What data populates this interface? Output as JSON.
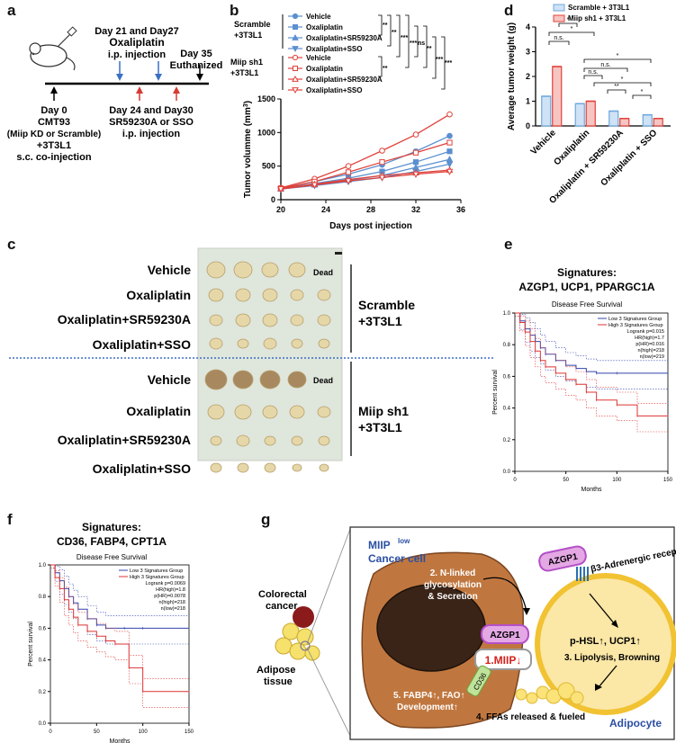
{
  "panel_labels": [
    "a",
    "b",
    "c",
    "d",
    "e",
    "f",
    "g"
  ],
  "panel_a": {
    "top_events": [
      "Day 21 and Day27",
      "Oxaliplatin",
      "i.p. injection"
    ],
    "day35": [
      "Day 35",
      "Euthanized"
    ],
    "day0": [
      "Day 0",
      "CMT93",
      "(Miip KD or Scramble)",
      "+3T3L1",
      "s.c. co-injection"
    ],
    "day24": [
      "Day 24 and Day30",
      "SR59230A or SSO",
      "i.p. injection"
    ]
  },
  "panel_b": {
    "group_scramble": [
      "Scramble",
      "+3T3L1"
    ],
    "group_miip": [
      "Miip sh1",
      "+3T3L1"
    ],
    "legend": [
      "Vehicle",
      "Oxaliplatin",
      "Oxaliplatin+SR59230A",
      "Oxaliplatin+SSO"
    ],
    "sig_stars": [
      "**",
      "**",
      "***",
      "***",
      "ns",
      "**",
      "***",
      "***",
      "**",
      "***",
      "***",
      "***",
      "**"
    ]
  },
  "panel_c": {
    "rows": [
      "Vehicle",
      "Oxaliplatin",
      "Oxaliplatin+SR59230A",
      "Oxaliplatin+SSO",
      "Vehicle",
      "Oxaliplatin",
      "Oxaliplatin+SR59230A",
      "Oxaliplatin+SSO"
    ],
    "dead": "Dead",
    "group_scramble": [
      "Scramble",
      "+3T3L1"
    ],
    "group_miip": [
      "Miip sh1",
      "+3T3L1"
    ]
  },
  "panel_d": {
    "sig": [
      "n.s.",
      "*",
      "*",
      "n.s.",
      "n.s.",
      "*",
      "**",
      "*",
      "**",
      "*"
    ]
  },
  "panel_e": {
    "title": [
      "Signatures:",
      "AZGP1, UCP1, PPARGC1A"
    ],
    "subtitle": "Disease Free Survival",
    "legend": [
      "Low 3 Signatures Group",
      "High 3 Signatures Group"
    ],
    "stats": [
      "Logrank p=0.015",
      "HR(high)=1.7",
      "p(HR)=0.016",
      "n(high)=218",
      "n(low)=219"
    ]
  },
  "panel_f": {
    "title": [
      "Signatures:",
      "CD36, FABP4, CPT1A"
    ],
    "subtitle": "Disease Free Survival",
    "legend": [
      "Low 3 Signatures Group",
      "High 3 Signatures Group"
    ],
    "stats": [
      "Logrank p=0.0069",
      "HR(high)=1.8",
      "p(HR)=0.0078",
      "n(high)=218",
      "n(low)=218"
    ]
  },
  "panel_g": {
    "cancer_cell": [
      "MIIP",
      "low",
      "Cancer cell"
    ],
    "colorectal": [
      "Colorectal",
      "cancer"
    ],
    "adipose": [
      "Adipose",
      "tissue"
    ],
    "step2": [
      "2. N-linked",
      "glycosylation",
      "& Secretion"
    ],
    "azgp1": "AZGP1",
    "miip": "1.MIIP↓",
    "receptor": "β3-Adrenergic receptor",
    "phsl": "p-HSL↑, UCP1↑",
    "step3": "3. Lipolysis, Browning",
    "cd36": "CD36",
    "step5": [
      "5. FABP4↑, FAO↑",
      "Development↑"
    ],
    "step4": "4. FFAs released & fueled",
    "adipocyte": "Adipocyte"
  },
  "chart_data": [
    {
      "type": "line",
      "panel": "b",
      "xlabel": "Days post injection",
      "ylabel": "Tumor volumme (mm",
      "ylabel_sup": "3",
      "ylabel_end": ")",
      "xlim": [
        20,
        36
      ],
      "ylim": [
        0,
        1500
      ],
      "xticks": [
        20,
        24,
        28,
        32,
        36
      ],
      "yticks": [
        0,
        500,
        1000,
        1500
      ],
      "x": [
        20,
        23,
        26,
        29,
        32,
        35
      ],
      "series": [
        {
          "name": "Vehicle",
          "group": "Scramble",
          "color": "#5b8fd0",
          "values": [
            170,
            270,
            380,
            520,
            720,
            950
          ]
        },
        {
          "name": "Oxaliplatin",
          "group": "Scramble",
          "color": "#5b8fd0",
          "values": [
            165,
            240,
            320,
            420,
            560,
            720
          ]
        },
        {
          "name": "Oxaliplatin+SR59230A",
          "group": "Scramble",
          "color": "#5b8fd0",
          "values": [
            160,
            220,
            290,
            360,
            480,
            600
          ]
        },
        {
          "name": "Oxaliplatin+SSO",
          "group": "Scramble",
          "color": "#5b8fd0",
          "values": [
            160,
            210,
            270,
            330,
            420,
            530
          ]
        },
        {
          "name": "Vehicle",
          "group": "Miip sh1",
          "color": "#e0413a",
          "values": [
            175,
            310,
            500,
            730,
            970,
            1270
          ]
        },
        {
          "name": "Oxaliplatin",
          "group": "Miip sh1",
          "color": "#e0413a",
          "values": [
            170,
            270,
            410,
            560,
            700,
            850
          ]
        },
        {
          "name": "Oxaliplatin+SR59230A",
          "group": "Miip sh1",
          "color": "#e0413a",
          "values": [
            165,
            230,
            300,
            360,
            400,
            440
          ]
        },
        {
          "name": "Oxaliplatin+SSO",
          "group": "Miip sh1",
          "color": "#e0413a",
          "values": [
            160,
            220,
            280,
            330,
            380,
            420
          ]
        }
      ]
    },
    {
      "type": "bar",
      "panel": "d",
      "ylabel": "Average tumor weight (g)",
      "ylim": [
        0,
        4
      ],
      "yticks": [
        0,
        1,
        2,
        3,
        4
      ],
      "categories": [
        "Vehicle",
        "Oxaliplatin",
        "Oxaliplatin + SR59230A",
        "Oxaliplatin + SSO"
      ],
      "series": [
        {
          "name": "Scramble + 3T3L1",
          "color": "#6fa8dc",
          "values": [
            1.2,
            0.9,
            0.6,
            0.45
          ]
        },
        {
          "name": "Miip sh1 + 3T3L1",
          "color": "#e0413a",
          "values": [
            2.4,
            1.0,
            0.3,
            0.3
          ]
        }
      ]
    },
    {
      "type": "line",
      "panel": "e",
      "xlabel": "Months",
      "ylabel": "Percent survival",
      "xlim": [
        0,
        150
      ],
      "ylim": [
        0,
        1
      ],
      "xticks": [
        0,
        50,
        100,
        150
      ],
      "yticks": [
        0,
        0.2,
        0.4,
        0.6,
        0.8,
        1.0
      ],
      "series": [
        {
          "name": "Low 3 Signatures Group",
          "color": "#3344aa",
          "x": [
            0,
            5,
            10,
            15,
            20,
            25,
            30,
            40,
            50,
            60,
            70,
            80,
            100,
            150
          ],
          "values": [
            1,
            0.95,
            0.9,
            0.86,
            0.82,
            0.78,
            0.74,
            0.7,
            0.67,
            0.65,
            0.63,
            0.62,
            0.62,
            0.62
          ]
        },
        {
          "name": "High 3 Signatures Group",
          "color": "#dd3333",
          "x": [
            0,
            5,
            10,
            15,
            20,
            25,
            30,
            40,
            50,
            60,
            70,
            80,
            100,
            120,
            150
          ],
          "values": [
            1,
            0.94,
            0.88,
            0.82,
            0.76,
            0.7,
            0.66,
            0.62,
            0.58,
            0.55,
            0.5,
            0.45,
            0.42,
            0.35,
            0.35
          ]
        }
      ]
    },
    {
      "type": "line",
      "panel": "f",
      "xlabel": "Months",
      "ylabel": "Percent survival",
      "xlim": [
        0,
        150
      ],
      "ylim": [
        0,
        1
      ],
      "xticks": [
        0,
        50,
        100,
        150
      ],
      "yticks": [
        0,
        0.2,
        0.4,
        0.6,
        0.8,
        1.0
      ],
      "series": [
        {
          "name": "Low 3 Signatures Group",
          "color": "#3344aa",
          "x": [
            0,
            5,
            10,
            15,
            20,
            25,
            30,
            40,
            50,
            60,
            80,
            100,
            150
          ],
          "values": [
            1,
            0.95,
            0.9,
            0.85,
            0.8,
            0.76,
            0.72,
            0.66,
            0.62,
            0.6,
            0.6,
            0.6,
            0.6
          ]
        },
        {
          "name": "High 3 Signatures Group",
          "color": "#dd3333",
          "x": [
            0,
            5,
            10,
            15,
            20,
            25,
            30,
            40,
            50,
            60,
            70,
            85,
            100,
            150
          ],
          "values": [
            1,
            0.92,
            0.85,
            0.78,
            0.72,
            0.67,
            0.62,
            0.58,
            0.55,
            0.52,
            0.5,
            0.35,
            0.2,
            0.2
          ]
        }
      ]
    }
  ]
}
